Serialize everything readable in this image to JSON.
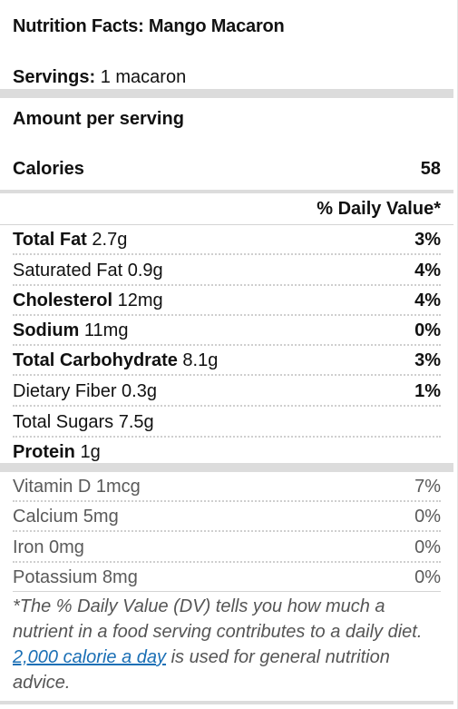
{
  "title": "Nutrition Facts: Mango Macaron",
  "servings": {
    "label": "Servings:",
    "value": " 1 macaron"
  },
  "amount_per_serving": "Amount per serving",
  "calories": {
    "label": "Calories",
    "value": "58"
  },
  "dv_header": "% Daily Value*",
  "nutrients": [
    {
      "name": "Total Fat",
      "amount": " 2.7g",
      "pct": "3%"
    },
    {
      "name": "Saturated Fat",
      "amount": " 0.9g",
      "pct": "4%"
    },
    {
      "name": "Cholesterol",
      "amount": " 12mg",
      "pct": "4%"
    },
    {
      "name": "Sodium",
      "amount": " 11mg",
      "pct": "0%"
    },
    {
      "name": "Total Carbohydrate",
      "amount": " 8.1g",
      "pct": "3%"
    },
    {
      "name": "Dietary Fiber",
      "amount": " 0.3g",
      "pct": "1%"
    },
    {
      "name": "Total Sugars",
      "amount": " 7.5g",
      "pct": ""
    },
    {
      "name": "Protein",
      "amount": " 1g",
      "pct": ""
    }
  ],
  "vitamins": [
    {
      "name": "Vitamin D",
      "amount": " 1mcg",
      "pct": "7%"
    },
    {
      "name": "Calcium",
      "amount": " 5mg",
      "pct": "0%"
    },
    {
      "name": "Iron",
      "amount": " 0mg",
      "pct": "0%"
    },
    {
      "name": "Potassium",
      "amount": " 8mg",
      "pct": "0%"
    }
  ],
  "footnote": {
    "before": "*The % Daily Value (DV) tells you how much a nutrient in a food serving contributes to a daily diet. ",
    "link": "2,000 calorie a day",
    "after": " is used for general nutrition advice."
  }
}
